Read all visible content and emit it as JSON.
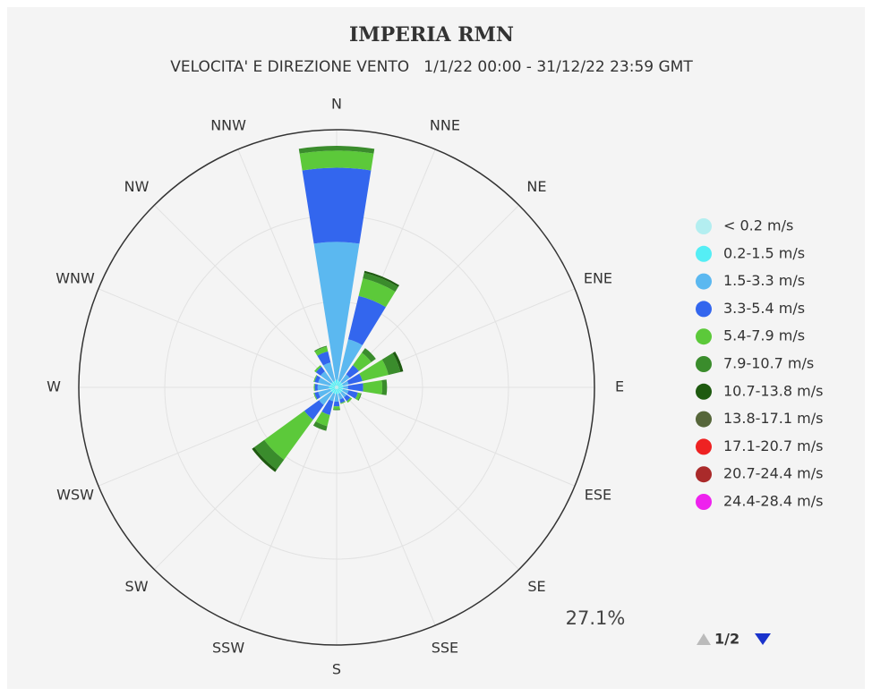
{
  "chart_data": {
    "type": "windrose",
    "title": "IMPERIA RMN",
    "subtitle": "VELOCITA' E DIREZIONE VENTO   1/1/22 00:00 - 31/12/22 23:59 GMT",
    "categories": [
      "N",
      "NNE",
      "NE",
      "ENE",
      "E",
      "ESE",
      "SE",
      "SSE",
      "S",
      "SSW",
      "SW",
      "WSW",
      "W",
      "WNW",
      "NW",
      "NNW"
    ],
    "rlim": [
      0,
      27.1
    ],
    "rticks": [
      {
        "value": 27.1,
        "label": "27.1%"
      }
    ],
    "legend_page": "1/2",
    "series": [
      {
        "name": "< 0.2 m/s",
        "color": "#b3eef0",
        "values": [
          0.2,
          0.2,
          0.2,
          0.2,
          0.2,
          0.2,
          0.2,
          0.2,
          0.2,
          0.2,
          0.2,
          0.2,
          0.2,
          0.2,
          0.2,
          0.2
        ]
      },
      {
        "name": "0.2-1.5 m/s",
        "color": "#55eef5",
        "values": [
          0.6,
          0.5,
          0.5,
          0.5,
          0.5,
          0.5,
          0.5,
          0.5,
          0.5,
          0.5,
          0.5,
          0.5,
          0.6,
          0.5,
          0.5,
          0.5
        ]
      },
      {
        "name": "1.5-3.3 m/s",
        "color": "#5bb8f0",
        "values": [
          14.5,
          4.5,
          1.0,
          0.6,
          0.5,
          0.6,
          0.6,
          0.6,
          0.8,
          0.8,
          1.6,
          1.3,
          1.2,
          1.3,
          1.4,
          2.0
        ]
      },
      {
        "name": "3.3-5.4 m/s",
        "color": "#3366ee",
        "values": [
          7.8,
          4.7,
          1.2,
          1.5,
          1.6,
          1.0,
          0.5,
          0.4,
          0.5,
          1.5,
          1.9,
          0.4,
          0.3,
          0.4,
          0.6,
          1.2
        ]
      },
      {
        "name": "5.4-7.9 m/s",
        "color": "#5cc93a",
        "values": [
          1.8,
          1.9,
          1.6,
          2.8,
          2.0,
          0.3,
          0.2,
          0.1,
          0.3,
          1.2,
          5.2,
          0.1,
          0.1,
          0.1,
          0.2,
          0.5
        ]
      },
      {
        "name": "7.9-10.7 m/s",
        "color": "#3a8c2c",
        "values": [
          0.5,
          0.6,
          0.6,
          1.3,
          0.5,
          0.1,
          0,
          0,
          0.1,
          0.5,
          1.3,
          0,
          0,
          0,
          0,
          0.1
        ]
      },
      {
        "name": "10.7-13.8 m/s",
        "color": "#1e5a10",
        "values": [
          0,
          0.2,
          0,
          0.3,
          0,
          0,
          0,
          0,
          0,
          0,
          0.3,
          0,
          0,
          0,
          0,
          0
        ]
      },
      {
        "name": "13.8-17.1 m/s",
        "color": "#56663a",
        "values": [
          0,
          0,
          0,
          0,
          0,
          0,
          0,
          0,
          0,
          0,
          0,
          0,
          0,
          0,
          0,
          0
        ]
      },
      {
        "name": "17.1-20.7 m/s",
        "color": "#ee2222",
        "values": [
          0,
          0,
          0,
          0,
          0,
          0,
          0,
          0,
          0,
          0,
          0,
          0,
          0,
          0,
          0,
          0
        ]
      },
      {
        "name": "20.7-24.4 m/s",
        "color": "#aa2a2a",
        "values": [
          0,
          0,
          0,
          0,
          0,
          0,
          0,
          0,
          0,
          0,
          0,
          0,
          0,
          0,
          0,
          0
        ]
      },
      {
        "name": "24.4-28.4 m/s",
        "color": "#ee22ee",
        "values": [
          0,
          0,
          0,
          0,
          0,
          0,
          0,
          0,
          0,
          0,
          0,
          0,
          0,
          0,
          0,
          0
        ]
      }
    ]
  }
}
